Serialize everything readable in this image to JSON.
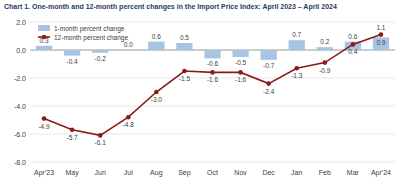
{
  "chart_data": {
    "type": "bar",
    "title": "Chart 1. One-month and 12-month percent changes in the Import Price Index: April 2023 – April 2024",
    "categories": [
      "Apr'23",
      "May",
      "Jun",
      "Jul",
      "Aug",
      "Sep",
      "Oct",
      "Nov",
      "Dec",
      "Jan",
      "Feb",
      "Mar",
      "Apr'24"
    ],
    "series": [
      {
        "name": "1-month percent change",
        "type": "bar",
        "color": "#a9c4e3",
        "values": [
          0.3,
          -0.4,
          -0.2,
          0.0,
          0.6,
          0.5,
          -0.6,
          -0.5,
          -0.7,
          0.7,
          0.2,
          0.6,
          0.9
        ],
        "value_labels": [
          "0.3",
          "-0.4",
          "-0.2",
          "0.0",
          "0.6",
          "0.5",
          "-0.6",
          "-0.5",
          "-0.7",
          "0.7",
          "0.2",
          "0.6",
          "0.9"
        ]
      },
      {
        "name": "12-month percent change",
        "type": "line",
        "color": "#8b1a1a",
        "marker": "circle",
        "line_style": "solid",
        "values": [
          -4.9,
          -5.7,
          -6.1,
          -4.8,
          -3.0,
          -1.5,
          -1.6,
          -1.6,
          -2.4,
          -1.3,
          -0.9,
          0.4,
          1.1
        ],
        "value_labels": [
          "-4.9",
          "-5.7",
          "-6.1",
          "-4.8",
          "-3.0",
          "-1.5",
          "-1.6",
          "-1.6",
          "-2.4",
          "-1.3",
          "-0.9",
          "0.4",
          "1.1"
        ]
      }
    ],
    "ylim": [
      -8,
      2
    ],
    "yticks": [
      {
        "value": -8,
        "label": "-8.0"
      },
      {
        "value": -6,
        "label": "-6.0"
      },
      {
        "value": -4,
        "label": "-4.0"
      },
      {
        "value": -2,
        "label": "-2.0"
      },
      {
        "value": 0,
        "label": "0.0"
      },
      {
        "value": 2,
        "label": "2.0"
      }
    ],
    "grid": true,
    "legend": "top-left",
    "data_labels": true
  }
}
